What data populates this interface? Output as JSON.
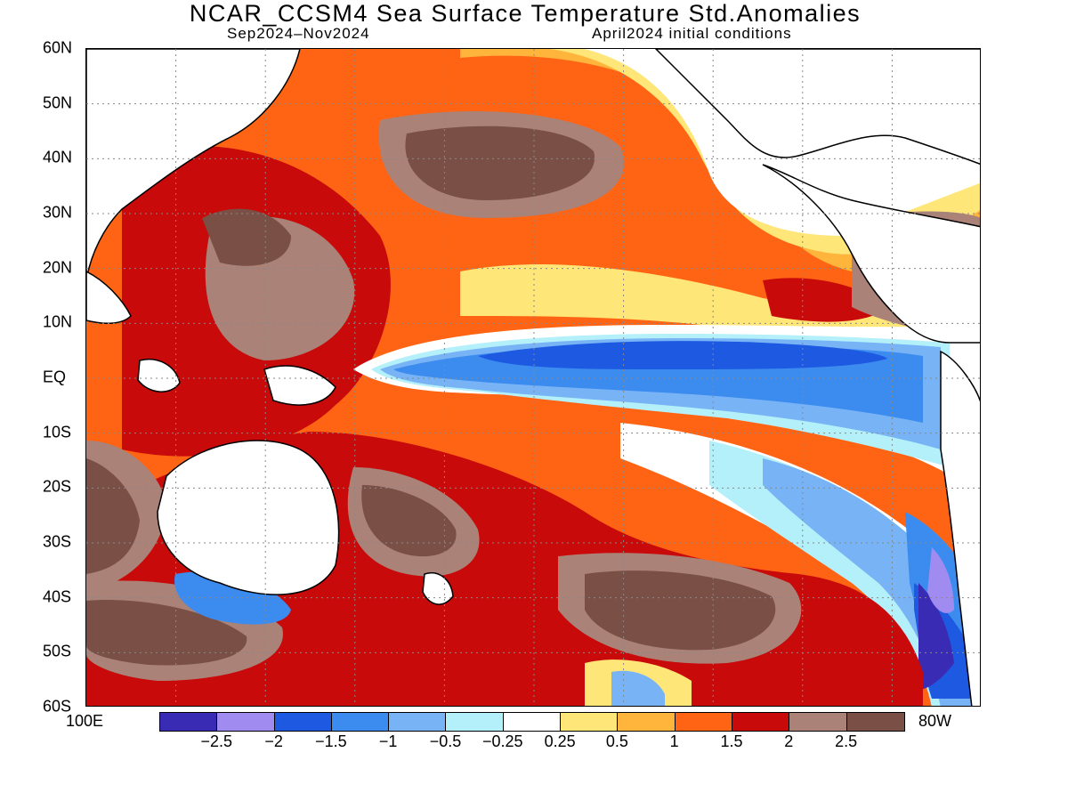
{
  "title": "NCAR_CCSM4 Sea Surface Temperature Std.Anomalies",
  "subtitle_left": "Sep2024–Nov2024",
  "subtitle_right": "April2024 initial conditions",
  "lat_labels": [
    "60N",
    "50N",
    "40N",
    "30N",
    "20N",
    "10N",
    "EQ",
    "10S",
    "20S",
    "30S",
    "40S",
    "50S",
    "60S"
  ],
  "lon_left": "100E",
  "lon_right": "80W",
  "colorbar": {
    "colors": [
      "#3a2bb4",
      "#a08cf0",
      "#1e5ae1",
      "#3c8cf0",
      "#78b4f5",
      "#b4f0fa",
      "#ffffff",
      "#ffe678",
      "#ffb43c",
      "#ff6414",
      "#c80a0a",
      "#aa8278",
      "#7a5046"
    ],
    "ticks": [
      "−2.5",
      "−2",
      "−1.5",
      "−1",
      "−0.5",
      "−0.25",
      "0.25",
      "0.5",
      "1",
      "1.5",
      "2",
      "2.5"
    ]
  },
  "map_data": {
    "quantity": "Sea Surface Temperature Std.Anomalies",
    "lat_range": [
      -60,
      60
    ],
    "lon_range": [
      "100E",
      "80W"
    ]
  }
}
